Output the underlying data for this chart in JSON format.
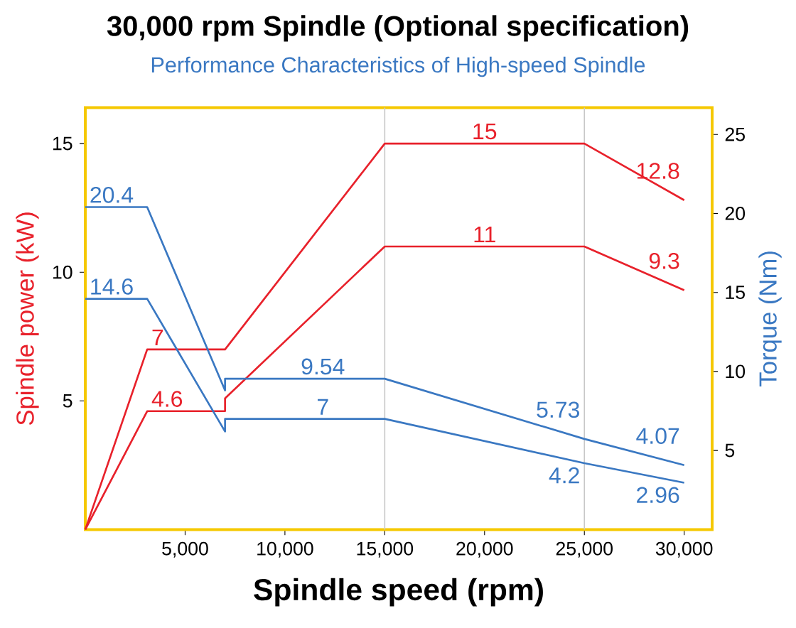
{
  "chart_data": {
    "type": "line",
    "title": "30,000 rpm Spindle (Optional specification)",
    "subtitle": "Performance Characteristics of High-speed Spindle",
    "xlabel": "Spindle speed (rpm)",
    "ylabel": "Spindle power (kW)",
    "y2label": "Torque (Nm)",
    "xlim": [
      0,
      31400
    ],
    "xticks": [
      {
        "value": 5000,
        "label": "5,000"
      },
      {
        "value": 10000,
        "label": "10,000"
      },
      {
        "value": 15000,
        "label": "15,000"
      },
      {
        "value": 20000,
        "label": "20,000"
      },
      {
        "value": 25000,
        "label": "25,000"
      },
      {
        "value": 30000,
        "label": "30,000"
      }
    ],
    "ylim": [
      0,
      16.4
    ],
    "yticks": [
      5,
      10,
      15
    ],
    "y2lim": [
      0,
      26.7
    ],
    "y2ticks": [
      5,
      10,
      15,
      20,
      25
    ],
    "ref_lines": [
      {
        "axis": "x",
        "value": 15000,
        "color": "#c8c8c8"
      },
      {
        "axis": "x",
        "value": 25000,
        "color": "#c8c8c8"
      }
    ],
    "series": [
      {
        "color": "#e8212b",
        "x": [
          0,
          3100,
          7000,
          15000,
          20000,
          25000,
          30000
        ],
        "values": [
          0,
          7,
          7,
          15,
          15,
          15,
          12.8
        ],
        "value_labels": [
          null,
          "7",
          null,
          null,
          "15",
          null,
          "12.8"
        ]
      },
      {
        "color": "#e8212b",
        "x": [
          0,
          3100,
          7000,
          7000,
          15000,
          20000,
          25000,
          30000
        ],
        "values": [
          0,
          4.6,
          4.6,
          5.1,
          11,
          11,
          11,
          9.3
        ],
        "value_labels": [
          null,
          "4.6",
          null,
          null,
          null,
          "11",
          null,
          "9.3"
        ]
      },
      {
        "color": "#3a78c2",
        "axis": "y2",
        "x": [
          0,
          3100,
          7000,
          7000,
          11900,
          15000,
          25000,
          30000
        ],
        "values": [
          20.4,
          20.4,
          8.8,
          9.54,
          9.54,
          9.54,
          5.73,
          4.07
        ],
        "value_labels": [
          "20.4",
          null,
          null,
          null,
          "9.54",
          null,
          "5.73",
          "4.07"
        ]
      },
      {
        "color": "#3a78c2",
        "axis": "y2",
        "x": [
          0,
          3100,
          7000,
          7000,
          11900,
          15000,
          25000,
          30000
        ],
        "values": [
          14.6,
          14.6,
          6.2,
          7,
          7,
          7,
          4.2,
          2.96
        ],
        "value_labels": [
          "14.6",
          null,
          null,
          null,
          "7",
          null,
          "4.2",
          "2.96"
        ]
      }
    ]
  }
}
